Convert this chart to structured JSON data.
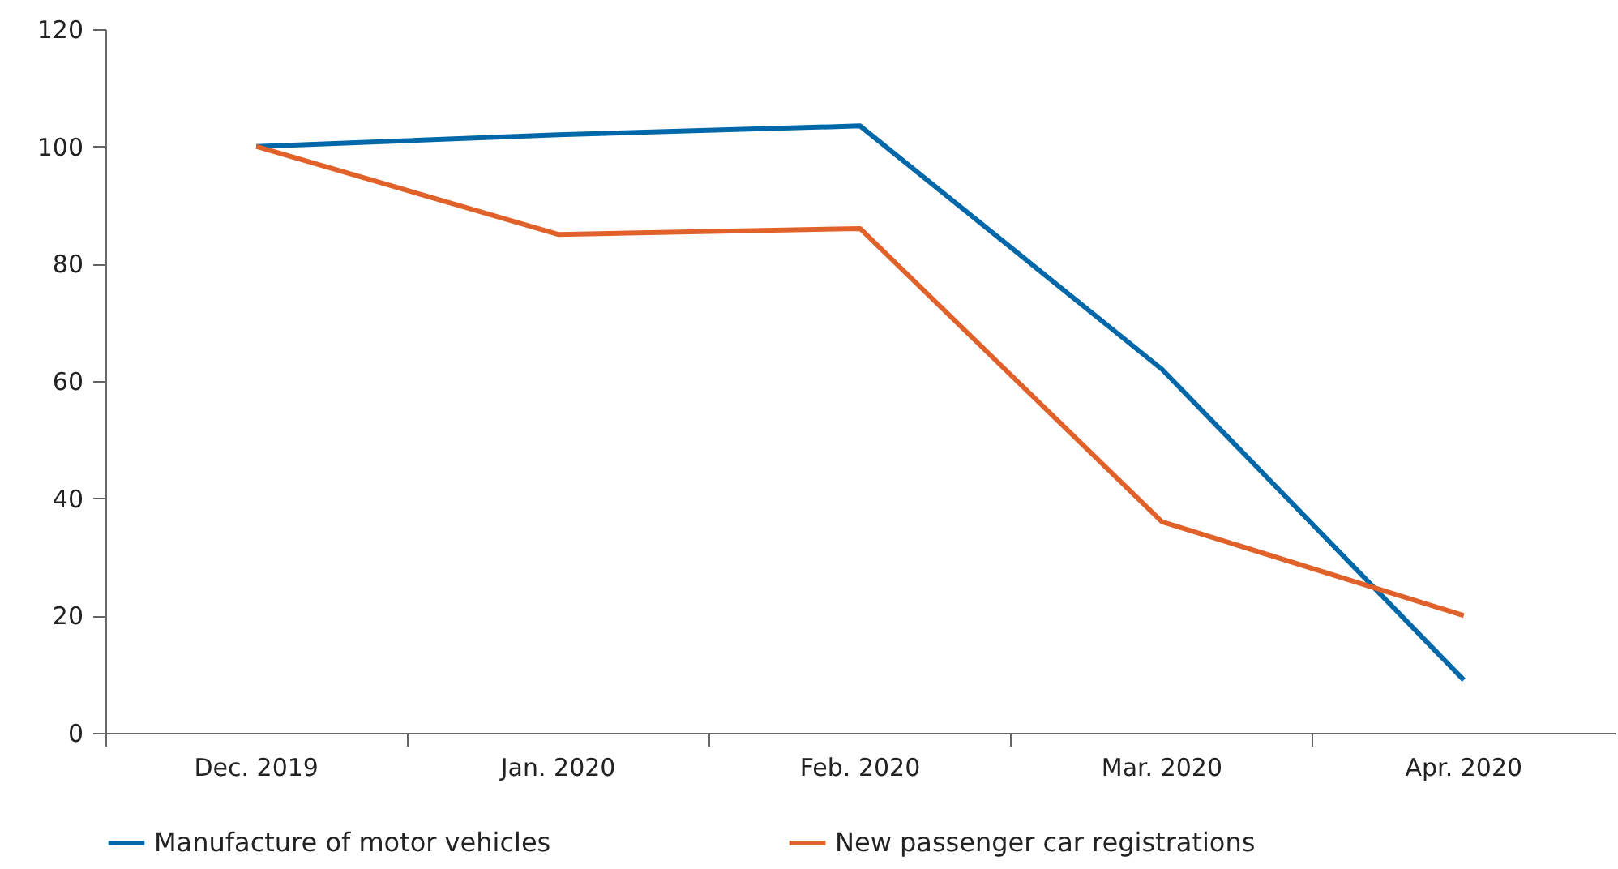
{
  "chart_data": {
    "type": "line",
    "categories": [
      "Dec. 2019",
      "Jan. 2020",
      "Feb. 2020",
      "Mar. 2020",
      "Apr. 2020"
    ],
    "series": [
      {
        "name": "Manufacture of motor vehicles",
        "color": "#0068a8",
        "values": [
          100,
          102,
          103.5,
          62,
          9
        ]
      },
      {
        "name": "New passenger car registrations",
        "color": "#e0622a",
        "values": [
          100,
          85,
          86,
          36,
          20
        ]
      }
    ],
    "ylim": [
      0,
      120
    ],
    "yticks": [
      0,
      20,
      40,
      60,
      80,
      100,
      120
    ],
    "grid": false,
    "legend": "bottom",
    "marker": "none",
    "line_style": "solid"
  }
}
